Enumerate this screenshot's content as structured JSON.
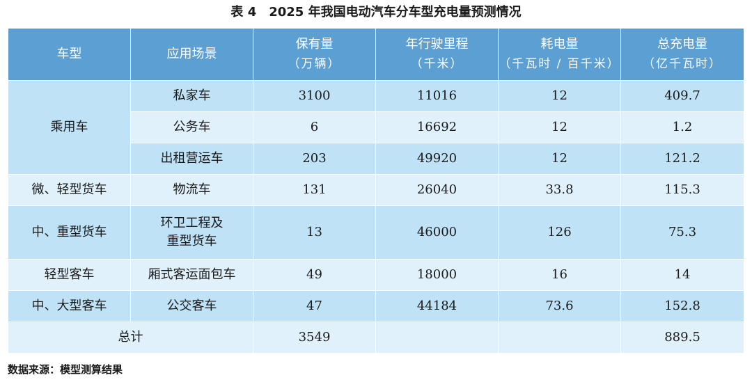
{
  "title": "表 4　2025 年我国电动汽车分车型充电量预测情况",
  "headers": [
    {
      "main": "车型",
      "sub": ""
    },
    {
      "main": "应用场景",
      "sub": ""
    },
    {
      "main": "保有量",
      "sub": "（万辆）"
    },
    {
      "main": "年行驶里程",
      "sub": "（千米）"
    },
    {
      "main": "耗电量",
      "sub": "（千瓦时 / 百千米）"
    },
    {
      "main": "总充电量",
      "sub": "（亿千瓦时）"
    }
  ],
  "groups": {
    "passenger": "乘用车",
    "light_truck": "微、轻型货车",
    "heavy_truck": "中、重型货车",
    "light_bus": "轻型客车",
    "large_bus": "中、大型客车"
  },
  "rows": [
    {
      "scene": "私家车",
      "stock": "3100",
      "mileage": "11016",
      "consumption": "12",
      "total": "409.7"
    },
    {
      "scene": "公务车",
      "stock": "6",
      "mileage": "16692",
      "consumption": "12",
      "total": "1.2"
    },
    {
      "scene": "出租营运车",
      "stock": "203",
      "mileage": "49920",
      "consumption": "12",
      "total": "121.2"
    },
    {
      "scene": "物流车",
      "stock": "131",
      "mileage": "26040",
      "consumption": "33.8",
      "total": "115.3"
    },
    {
      "scene_line1": "环卫工程及",
      "scene_line2": "重型货车",
      "stock": "13",
      "mileage": "46000",
      "consumption": "126",
      "total": "75.3"
    },
    {
      "scene": "厢式客运面包车",
      "stock": "49",
      "mileage": "18000",
      "consumption": "16",
      "total": "14"
    },
    {
      "scene": "公交客车",
      "stock": "47",
      "mileage": "44184",
      "consumption": "73.6",
      "total": "152.8"
    }
  ],
  "total_row": {
    "label": "总计",
    "stock": "3549",
    "mileage": "",
    "consumption": "",
    "total": "889.5"
  },
  "source": "数据来源：模型测算结果"
}
